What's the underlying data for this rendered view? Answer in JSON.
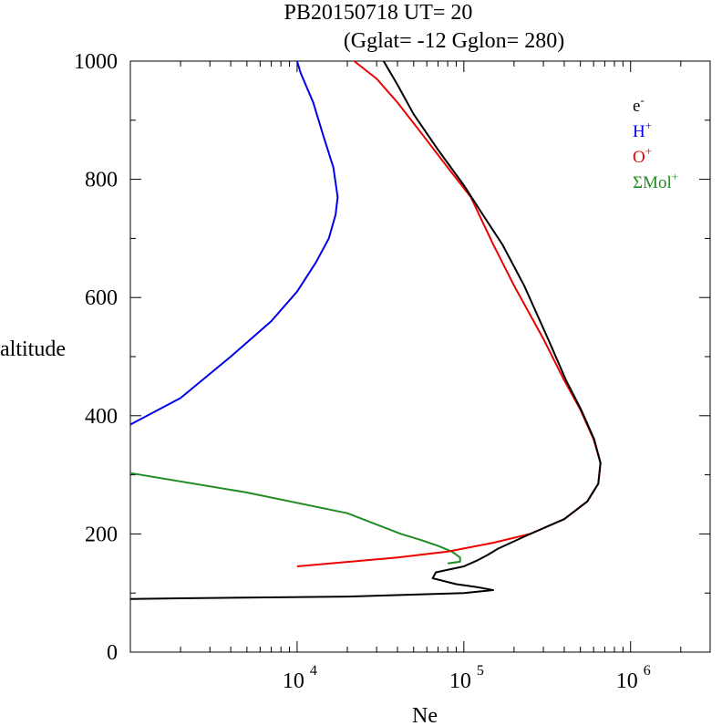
{
  "chart_data": {
    "type": "line",
    "title_line1": "PB20150718   UT=  20",
    "title_line2": "(Gglat= -12   Gglon=  280)",
    "xlabel": "Ne",
    "ylabel": "altitude",
    "x_scale": "log",
    "xlim": [
      1000,
      3000000
    ],
    "ylim": [
      0,
      1000
    ],
    "x_ticks": [
      {
        "value": 10000,
        "base": "10",
        "exp": "4"
      },
      {
        "value": 100000,
        "base": "10",
        "exp": "5"
      },
      {
        "value": 1000000,
        "base": "10",
        "exp": "6"
      }
    ],
    "y_ticks": [
      0,
      200,
      400,
      600,
      800,
      1000
    ],
    "legend": [
      {
        "name": "e",
        "sup": "-",
        "color": "#000000"
      },
      {
        "name": "H",
        "sup": "+",
        "color": "#0000ee"
      },
      {
        "name": "O",
        "sup": "+",
        "color": "#ee0000"
      },
      {
        "name": "ΣMol",
        "sup": "+",
        "color": "#228b22"
      }
    ],
    "series": [
      {
        "name": "ΣMol+",
        "color": "#228b22",
        "points": [
          [
            1000,
            303
          ],
          [
            5000,
            270
          ],
          [
            20000,
            235
          ],
          [
            42000,
            200
          ],
          [
            55000,
            190
          ],
          [
            70000,
            180
          ],
          [
            85000,
            170
          ],
          [
            95000,
            160
          ],
          [
            95000,
            153
          ],
          [
            80000,
            150
          ]
        ]
      },
      {
        "name": "H+",
        "color": "#0000ee",
        "points": [
          [
            1000,
            385
          ],
          [
            2000,
            430
          ],
          [
            4000,
            500
          ],
          [
            7000,
            560
          ],
          [
            10000,
            610
          ],
          [
            13000,
            660
          ],
          [
            15500,
            700
          ],
          [
            17000,
            740
          ],
          [
            17500,
            770
          ],
          [
            16500,
            820
          ],
          [
            14500,
            870
          ],
          [
            12500,
            930
          ],
          [
            10500,
            980
          ],
          [
            10000,
            1000
          ]
        ]
      },
      {
        "name": "O+",
        "color": "#ee0000",
        "points": [
          [
            10000,
            145
          ],
          [
            40000,
            160
          ],
          [
            80000,
            170
          ],
          [
            150000,
            185
          ],
          [
            250000,
            200
          ],
          [
            400000,
            225
          ],
          [
            550000,
            255
          ],
          [
            640000,
            285
          ],
          [
            660000,
            320
          ],
          [
            600000,
            360
          ],
          [
            500000,
            410
          ],
          [
            400000,
            460
          ],
          [
            300000,
            530
          ],
          [
            200000,
            620
          ],
          [
            150000,
            690
          ],
          [
            110000,
            770
          ],
          [
            80000,
            820
          ],
          [
            55000,
            880
          ],
          [
            40000,
            930
          ],
          [
            30000,
            970
          ],
          [
            22000,
            1000
          ]
        ]
      },
      {
        "name": "e-",
        "color": "#000000",
        "points": [
          [
            1000,
            90
          ],
          [
            2000,
            91
          ],
          [
            20000,
            94
          ],
          [
            100000,
            100
          ],
          [
            150000,
            105
          ],
          [
            120000,
            110
          ],
          [
            90000,
            115
          ],
          [
            65000,
            125
          ],
          [
            68000,
            135
          ],
          [
            100000,
            145
          ],
          [
            120000,
            155
          ],
          [
            140000,
            165
          ],
          [
            160000,
            175
          ],
          [
            250000,
            200
          ],
          [
            400000,
            225
          ],
          [
            550000,
            255
          ],
          [
            640000,
            285
          ],
          [
            660000,
            320
          ],
          [
            605000,
            360
          ],
          [
            505000,
            410
          ],
          [
            410000,
            460
          ],
          [
            320000,
            530
          ],
          [
            230000,
            620
          ],
          [
            170000,
            690
          ],
          [
            130000,
            740
          ],
          [
            100000,
            790
          ],
          [
            70000,
            850
          ],
          [
            50000,
            910
          ],
          [
            40000,
            960
          ],
          [
            33000,
            1000
          ]
        ]
      }
    ]
  }
}
